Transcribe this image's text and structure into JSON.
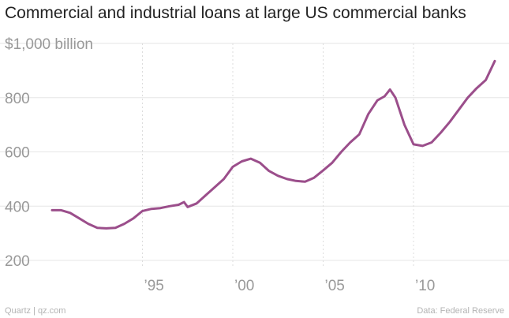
{
  "chart_data": {
    "type": "line",
    "title": "Commercial and industrial loans at large US commercial banks",
    "unit_label": "$1,000 billion",
    "y_tick_labels": [
      "800",
      "600",
      "400",
      "200"
    ],
    "x_tick_labels": [
      "’95",
      "’00",
      "’05",
      "’10"
    ],
    "x_tick_values": [
      1995,
      2000,
      2005,
      2010
    ],
    "y_tick_values": [
      1000,
      800,
      600,
      400,
      200
    ],
    "ylim": [
      200,
      1000
    ],
    "xlim": [
      1990,
      2014.8
    ],
    "grid": "x-dashed, y-solid",
    "line_color": "#9b4e8b",
    "series": [
      {
        "x": [
          1990.0,
          1990.5,
          1991.0,
          1991.5,
          1992.0,
          1992.5,
          1993.0,
          1993.5,
          1994.0,
          1994.5,
          1995.0,
          1995.5,
          1996.0,
          1996.5,
          1997.0,
          1997.3,
          1997.5,
          1998.0,
          1998.5,
          1999.0,
          1999.5,
          2000.0,
          2000.5,
          2001.0,
          2001.5,
          2002.0,
          2002.5,
          2003.0,
          2003.5,
          2004.0,
          2004.5,
          2005.0,
          2005.5,
          2006.0,
          2006.5,
          2007.0,
          2007.5,
          2008.0,
          2008.4,
          2008.7,
          2009.0,
          2009.5,
          2010.0,
          2010.5,
          2011.0,
          2011.5,
          2012.0,
          2012.5,
          2013.0,
          2013.5,
          2014.0,
          2014.5
        ],
        "y": [
          385,
          385,
          375,
          355,
          335,
          320,
          318,
          320,
          335,
          355,
          382,
          390,
          393,
          400,
          405,
          415,
          397,
          410,
          440,
          470,
          500,
          545,
          565,
          575,
          560,
          530,
          512,
          500,
          493,
          490,
          505,
          532,
          560,
          600,
          635,
          665,
          740,
          790,
          805,
          830,
          800,
          700,
          628,
          622,
          635,
          670,
          710,
          755,
          800,
          835,
          865,
          935
        ]
      }
    ]
  },
  "footer": {
    "source_left": "Quartz | qz.com",
    "source_right": "Data: Federal Reserve"
  }
}
